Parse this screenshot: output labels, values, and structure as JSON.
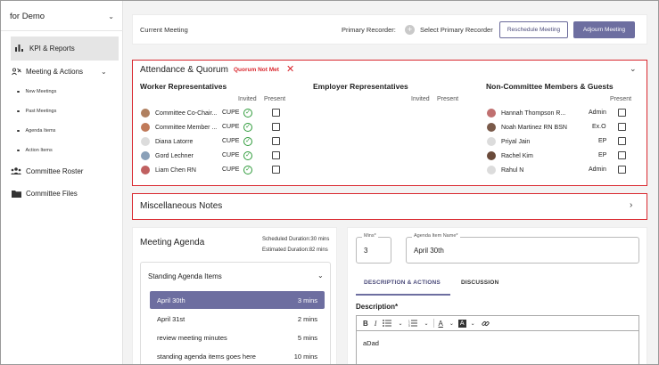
{
  "sidebar": {
    "org_name": "for Demo",
    "items": [
      {
        "label": "KPI & Reports",
        "icon": "bar-chart-icon"
      },
      {
        "label": "Meeting & Actions",
        "icon": "meeting-icon"
      },
      {
        "label": "Committee Roster",
        "icon": "people-icon"
      },
      {
        "label": "Committee Files",
        "icon": "folder-icon"
      }
    ],
    "sub_items": [
      "New Meetings",
      "Past Meetings",
      "Agenda Items",
      "Action Items"
    ]
  },
  "header": {
    "title": "Current Meeting",
    "recorder_label": "Primary Recorder:",
    "select_recorder": "Select Primary Recorder",
    "reschedule_label": "Reschedule Meeting",
    "adjourn_label": "Adjourn Meeting"
  },
  "attendance": {
    "title": "Attendance & Quorum",
    "quorum_status": "Quorum Not Met",
    "worker": {
      "title": "Worker Representatives",
      "col_invited": "Invited",
      "col_present": "Present",
      "members": [
        {
          "name": "Committee Co-Chair...",
          "role": "CUPE",
          "avatar_color": "#b08060"
        },
        {
          "name": "Committee Member ...",
          "role": "CUPE",
          "avatar_color": "#c07a5a"
        },
        {
          "name": "Diana Latorre",
          "role": "CUPE",
          "avatar_color": "#dcdcdc"
        },
        {
          "name": "Gord Lechner",
          "role": "CUPE",
          "avatar_color": "#8aa0b8"
        },
        {
          "name": "Liam Chen RN",
          "role": "CUPE",
          "avatar_color": "#c06060"
        }
      ]
    },
    "employer": {
      "title": "Employer Representatives",
      "col_invited": "Invited",
      "col_present": "Present"
    },
    "guests": {
      "title": "Non-Committee Members & Guests",
      "col_present": "Present",
      "members": [
        {
          "name": "Hannah Thompson R...",
          "role": "Admin",
          "avatar_color": "#c07070"
        },
        {
          "name": "Noah Martinez RN BSN",
          "role": "Ex.O",
          "avatar_color": "#7a5a4a"
        },
        {
          "name": "Priyal Jain",
          "role": "EP",
          "avatar_color": "#dcdcdc"
        },
        {
          "name": "Rachel Kim",
          "role": "EP",
          "avatar_color": "#6a4a3a"
        },
        {
          "name": "Rahul N",
          "role": "Admin",
          "avatar_color": "#dcdcdc"
        }
      ]
    }
  },
  "misc_notes": {
    "title": "Miscellaneous Notes"
  },
  "agenda": {
    "title": "Meeting Agenda",
    "scheduled": "Scheduled Duration:30 mins",
    "estimated": "Estimated Duration:82 mins",
    "section_title": "Standing Agenda Items",
    "items": [
      {
        "name": "April 30th",
        "duration": "3 mins"
      },
      {
        "name": "April 31st",
        "duration": "2 mins"
      },
      {
        "name": "review meeting minutes",
        "duration": "5 mins"
      },
      {
        "name": "standing agenda items goes here",
        "duration": "10 mins"
      }
    ]
  },
  "detail": {
    "mins_label": "Mins*",
    "mins_value": "3",
    "agenda_name_label": "Agenda Item Name*",
    "agenda_name_value": "April 30th",
    "tabs": [
      "DESCRIPTION & ACTIONS",
      "DISCUSSION"
    ],
    "description_label": "Description*",
    "toolbar": {
      "bold": "B",
      "italic": "I",
      "bullet": "☰",
      "number": "☷",
      "font_color": "A",
      "highlight": "A",
      "link": "🔗",
      "caret": "⌄"
    },
    "description_text": "aDad"
  },
  "colors": {
    "accent": "#6d6ea0",
    "alert": "#d9272e",
    "present_check": "#2e9b3a"
  }
}
